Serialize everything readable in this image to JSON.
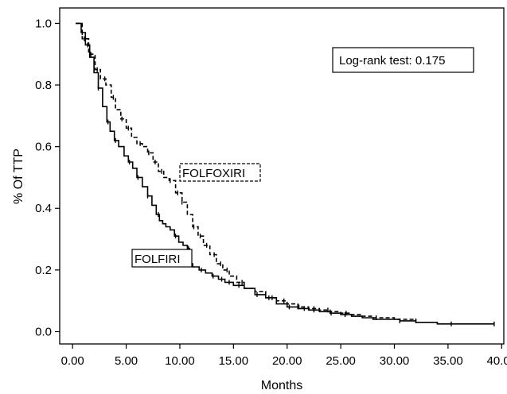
{
  "chart_data": {
    "type": "line",
    "title": "",
    "xlabel": "Months",
    "ylabel": "% Of TTP",
    "xlim": [
      -1.2,
      40.2
    ],
    "ylim": [
      -0.04,
      1.05
    ],
    "xticks": [
      0,
      5,
      10,
      15,
      20,
      25,
      30,
      35,
      40
    ],
    "xtick_labels": [
      "0.00",
      "5.00",
      "10.00",
      "15.00",
      "20.00",
      "25.00",
      "30.00",
      "35.00",
      "40.00"
    ],
    "yticks": [
      0,
      0.2,
      0.4,
      0.6,
      0.8,
      1.0
    ],
    "ytick_labels": [
      "0.0",
      "0.2",
      "0.4",
      "0.6",
      "0.8",
      "1.0"
    ],
    "grid": false,
    "annotation": "Log-rank test: 0.175",
    "series": [
      {
        "name": "FOLFIRI",
        "style": "solid",
        "step": true,
        "x": [
          0.3,
          0.8,
          1.2,
          1.6,
          2.0,
          2.4,
          2.8,
          3.2,
          3.5,
          3.9,
          4.3,
          4.8,
          5.2,
          5.6,
          6.0,
          6.5,
          7.0,
          7.4,
          7.8,
          8.1,
          8.4,
          8.7,
          9.1,
          9.5,
          9.9,
          10.3,
          10.7,
          10.9,
          11.2,
          11.8,
          12.4,
          13.0,
          13.6,
          14.2,
          15.0,
          16.0,
          17.0,
          18.0,
          19.0,
          20.0,
          21.0,
          22.0,
          23.0,
          24.0,
          25.0,
          26.0,
          27.0,
          28.0,
          30.5,
          32.0,
          34.0,
          35.3,
          37.0,
          39.3
        ],
        "y": [
          1.0,
          0.97,
          0.93,
          0.89,
          0.84,
          0.79,
          0.73,
          0.68,
          0.65,
          0.62,
          0.6,
          0.57,
          0.55,
          0.53,
          0.5,
          0.47,
          0.44,
          0.41,
          0.38,
          0.36,
          0.35,
          0.34,
          0.33,
          0.31,
          0.29,
          0.28,
          0.27,
          0.22,
          0.21,
          0.2,
          0.19,
          0.18,
          0.17,
          0.16,
          0.15,
          0.14,
          0.12,
          0.11,
          0.09,
          0.08,
          0.075,
          0.07,
          0.065,
          0.06,
          0.055,
          0.05,
          0.045,
          0.04,
          0.035,
          0.03,
          0.025,
          0.025,
          0.025,
          0.025
        ]
      },
      {
        "name": "FOLFOXIRI",
        "style": "dashed",
        "step": true,
        "x": [
          0.3,
          0.9,
          1.5,
          2.1,
          2.6,
          3.1,
          3.6,
          4.0,
          4.5,
          5.0,
          5.5,
          6.0,
          6.5,
          7.0,
          7.5,
          8.0,
          8.5,
          9.0,
          9.6,
          10.2,
          10.7,
          11.2,
          11.7,
          12.2,
          12.8,
          13.4,
          14.0,
          14.6,
          15.3,
          16.0,
          17.0,
          18.0,
          19.0,
          20.0,
          21.0,
          22.0,
          23.0,
          24.0,
          25.0,
          26.0,
          27.0,
          28.0,
          30.0,
          32.0
        ],
        "y": [
          1.0,
          0.95,
          0.9,
          0.85,
          0.82,
          0.8,
          0.76,
          0.72,
          0.69,
          0.66,
          0.63,
          0.61,
          0.6,
          0.58,
          0.55,
          0.52,
          0.5,
          0.49,
          0.45,
          0.42,
          0.38,
          0.34,
          0.31,
          0.28,
          0.25,
          0.22,
          0.2,
          0.18,
          0.16,
          0.14,
          0.13,
          0.11,
          0.1,
          0.09,
          0.08,
          0.075,
          0.07,
          0.065,
          0.06,
          0.055,
          0.05,
          0.045,
          0.04,
          0.035
        ]
      }
    ],
    "censor_marks": {
      "FOLFIRI": [
        0.9,
        1.4,
        2.4,
        3.3,
        4.0,
        5.3,
        6.1,
        7.0,
        8.0,
        9.6,
        10.8,
        12.0,
        13.1,
        13.9,
        14.6,
        15.5,
        17.2,
        18.6,
        20.2,
        21.6,
        22.5,
        24.1,
        25.4,
        30.5,
        35.3,
        39.3
      ],
      "FOLFOXIRI": [
        1.1,
        1.7,
        2.3,
        3.0,
        3.8,
        4.6,
        5.2,
        6.3,
        7.1,
        7.7,
        8.3,
        9.1,
        9.8,
        10.2,
        11.3,
        11.9,
        12.5,
        13.2,
        13.8,
        14.4,
        15.8,
        17.0,
        18.3,
        19.7,
        21.1,
        22.5,
        23.8,
        25.5,
        28.3,
        32.0
      ]
    },
    "legend_labels": {
      "folfiri": "FOLFIRI",
      "folfoxiri": "FOLFOXIRI"
    }
  }
}
